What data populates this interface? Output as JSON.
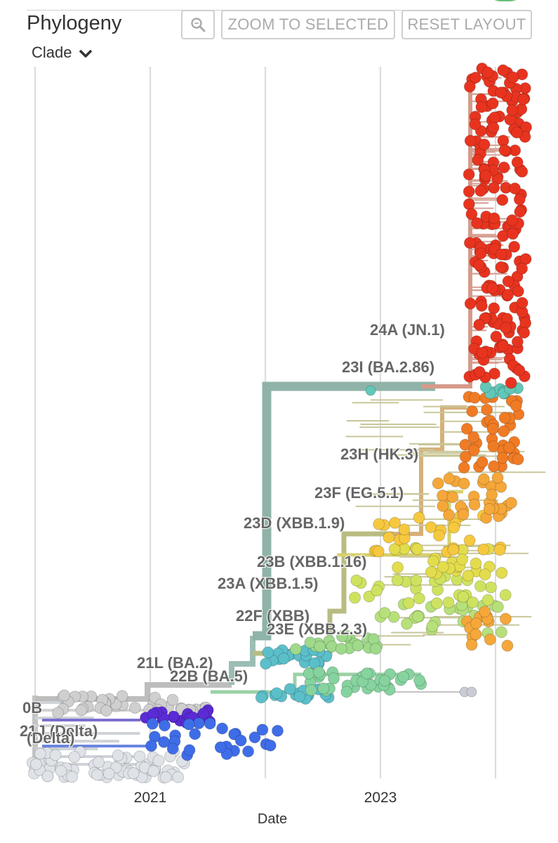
{
  "panel": {
    "title": "Phylogeny",
    "zoom_to_selected_label": "ZOOM TO SELECTED",
    "reset_layout_label": "RESET LAYOUT",
    "color_by_label": "Clade",
    "icons": [
      "search-icon",
      "chevron-down-icon"
    ]
  },
  "axis": {
    "x_title": "Date",
    "tick_labels": [
      "2021",
      "2023"
    ],
    "gridline_years": [
      2020,
      2021,
      2022,
      2023,
      2024
    ]
  },
  "clade_labels": [
    {
      "key": "24A",
      "text": "24A (JN.1)"
    },
    {
      "key": "23I",
      "text": "23I (BA.2.86)"
    },
    {
      "key": "23H",
      "text": "23H (HK.3)"
    },
    {
      "key": "23F",
      "text": "23F (EG.5.1)"
    },
    {
      "key": "23D",
      "text": "23D (XBB.1.9)"
    },
    {
      "key": "23B",
      "text": "23B (XBB.1.16)"
    },
    {
      "key": "23A",
      "text": "23A (XBB.1.5)"
    },
    {
      "key": "22F",
      "text": "22F (XBB)"
    },
    {
      "key": "23E",
      "text": "23E (XBB.2.3)"
    },
    {
      "key": "21L",
      "text": "21L (BA.2)"
    },
    {
      "key": "22B",
      "text": "22B (BA.5)"
    },
    {
      "key": "20B",
      "text": "0B"
    },
    {
      "key": "21J",
      "text": "21J (Delta)"
    },
    {
      "key": "21I",
      "text": "(Delta)"
    }
  ],
  "colors": {
    "24A": "#e8341f",
    "23I": "#62c7b8",
    "23H": "#f07b25",
    "23F": "#f5a73a",
    "23D": "#f6c83f",
    "23B": "#e3dc4d",
    "23A": "#cfe260",
    "23E": "#b7e07a",
    "22F": "#9fd98a",
    "21L": "#5bbfca",
    "22B": "#86d39f",
    "20B": "#c9c9c9",
    "21J": "#5b2bd6",
    "21I": "#3f6de8",
    "base": "#d0d4da"
  }
}
